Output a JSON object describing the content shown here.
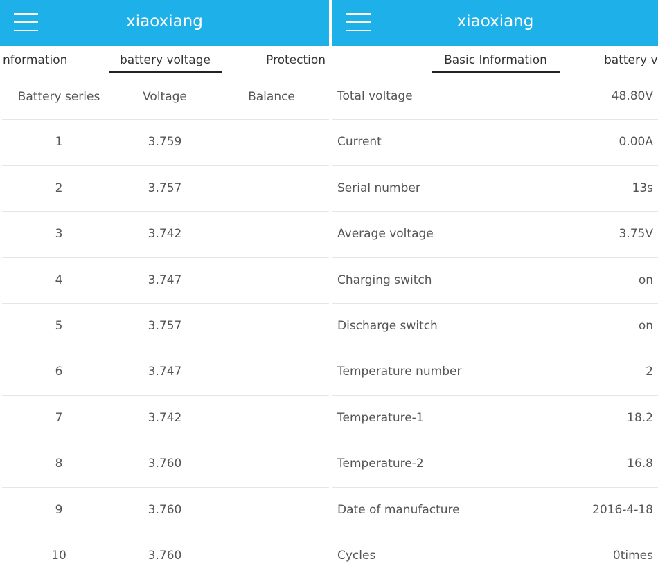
{
  "screens": [
    {
      "title": "xiaoxiang",
      "tabs": [
        "nformation",
        "battery voltage",
        "Protection"
      ],
      "table": {
        "columns": [
          "Battery series",
          "Voltage",
          "Balance"
        ],
        "rows": [
          [
            "1",
            "3.759"
          ],
          [
            "2",
            "3.757"
          ],
          [
            "3",
            "3.742"
          ],
          [
            "4",
            "3.747"
          ],
          [
            "5",
            "3.757"
          ],
          [
            "6",
            "3.747"
          ],
          [
            "7",
            "3.742"
          ],
          [
            "8",
            "3.760"
          ],
          [
            "9",
            "3.760"
          ],
          [
            "10",
            "3.760"
          ]
        ]
      }
    },
    {
      "title": "xiaoxiang",
      "tabs": [
        "Basic Information",
        "battery vo"
      ],
      "rows": [
        [
          "Total voltage",
          "48.80V"
        ],
        [
          "Current",
          "0.00A"
        ],
        [
          "Serial number",
          "13s"
        ],
        [
          "Average voltage",
          "3.75V"
        ],
        [
          "Charging switch",
          "on"
        ],
        [
          "Discharge switch",
          "on"
        ],
        [
          "Temperature number",
          "2"
        ],
        [
          "Temperature-1",
          "18.2"
        ],
        [
          "Temperature-2",
          "16.8"
        ],
        [
          "Date of manufacture",
          "2016-4-18"
        ],
        [
          "Cycles",
          "0times"
        ]
      ]
    }
  ]
}
